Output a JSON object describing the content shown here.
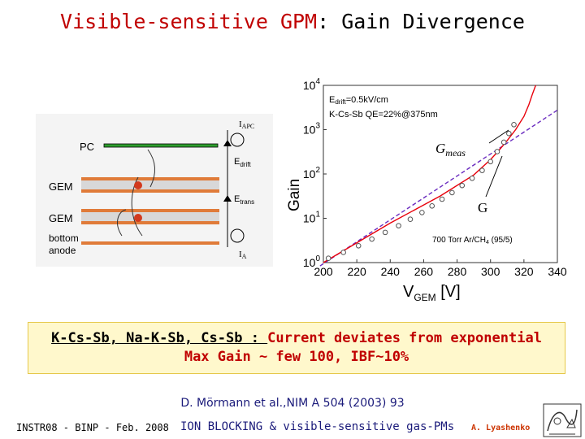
{
  "title": {
    "part1": "Visible-sensitive GPM",
    "part2": ": Gain Divergence"
  },
  "schematic": {
    "pc_label": "PC",
    "gem1_label": "GEM",
    "gem2_label": "GEM",
    "bottom_label": "bottom",
    "anode_label": "anode",
    "iapc_label": "I",
    "iapc_sub": "APC",
    "edrift_label": "E",
    "edrift_sub": "drift",
    "etrans_label": "E",
    "etrans_sub": "trans",
    "ia_label": "I",
    "ia_sub": "A",
    "colors": {
      "pc_electrode": "#2e9e2e",
      "gem_foil": "#e07b39",
      "anode": "#e07b39",
      "ion": "#d23a1e"
    }
  },
  "chart_data": {
    "type": "scatter",
    "xlabel": "V",
    "xlabel_sub": "GEM",
    "xlabel_unit": " [V]",
    "ylabel": "Gain",
    "xlim": [
      200,
      340
    ],
    "ylim_log10": [
      0,
      4
    ],
    "yscale": "log",
    "x_ticks": [
      200,
      220,
      240,
      260,
      280,
      300,
      320,
      340
    ],
    "y_ticks": [
      {
        "base": "10",
        "exp": "0"
      },
      {
        "base": "10",
        "exp": "1"
      },
      {
        "base": "10",
        "exp": "2"
      },
      {
        "base": "10",
        "exp": "3"
      },
      {
        "base": "10",
        "exp": "4"
      }
    ],
    "annotations": {
      "edrift_line": "E",
      "edrift_sub": "drift",
      "edrift_value": "=0.5kV/cm",
      "qe_line": "K-Cs-Sb QE=22%@375nm",
      "gas_prefix": "700 Torr Ar/CH",
      "gas_sub": "4",
      "gas_suffix": " (95/5)",
      "gmeas_label": "G",
      "gmeas_sub": "meas",
      "g_label": "G"
    },
    "series": [
      {
        "role": "measured",
        "x": [
          203,
          212,
          221,
          229,
          237,
          245,
          252,
          259,
          265,
          271,
          277,
          283,
          289,
          295,
          300,
          304,
          308,
          311,
          314
        ],
        "y": [
          1.25,
          1.7,
          2.4,
          3.4,
          4.8,
          6.8,
          9.5,
          13.5,
          19,
          27,
          38,
          55,
          80,
          120,
          190,
          320,
          520,
          820,
          1300
        ]
      },
      {
        "role": "exponential_fit",
        "x": [
          198,
          340
        ],
        "y": [
          0.84,
          2760
        ]
      },
      {
        "role": "divergence_curve",
        "x": [
          200,
          240,
          270,
          290,
          300,
          305,
          310,
          315,
          320,
          323,
          325,
          327
        ],
        "y": [
          1.0,
          7.8,
          32,
          95,
          210,
          340,
          570,
          1000,
          2000,
          3700,
          6200,
          10000
        ]
      }
    ],
    "colors": {
      "points": "#555555",
      "fit": "#6a2bbf",
      "curve": "#e8000b",
      "axis": "#333333"
    }
  },
  "conclusion": {
    "line1_part1": "K-Cs-Sb, Na-K-Sb, Cs-Sb : ",
    "line1_part2": "Current deviates from exponential",
    "line2": "Max Gain ~ few 100, IBF~10%"
  },
  "reference": "D. Mörmann et al.,NIM A 504 (2003) 93",
  "footer": {
    "left": "INSTR08 - BINP - Feb. 2008",
    "center": "ION BLOCKING & visible-sensitive gas-PMs",
    "right": "A. Lyashenko"
  }
}
